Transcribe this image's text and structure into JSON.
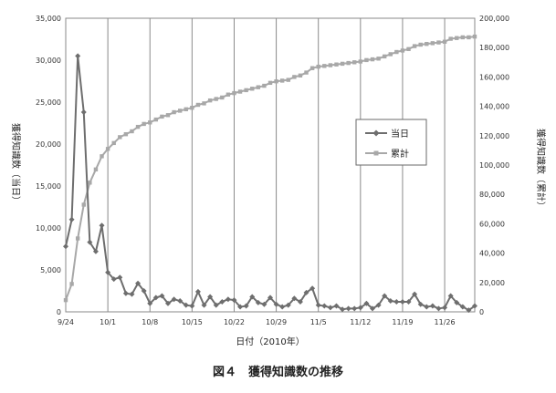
{
  "caption": "図４　獲得知識数の推移",
  "chart_data": {
    "type": "line",
    "xlabel": "日付（2010年）",
    "ylabel_left": "獲得知識数（当日）",
    "ylabel_right": "獲得知識数（累計）",
    "x_tick_labels": [
      "9/24",
      "10/1",
      "10/8",
      "10/15",
      "10/22",
      "10/29",
      "11/5",
      "11/12",
      "11/19",
      "11/26"
    ],
    "x": [
      "9/24",
      "9/25",
      "9/26",
      "9/27",
      "9/28",
      "9/29",
      "9/30",
      "10/1",
      "10/2",
      "10/3",
      "10/4",
      "10/5",
      "10/6",
      "10/7",
      "10/8",
      "10/9",
      "10/10",
      "10/11",
      "10/12",
      "10/13",
      "10/14",
      "10/15",
      "10/16",
      "10/17",
      "10/18",
      "10/19",
      "10/20",
      "10/21",
      "10/22",
      "10/23",
      "10/24",
      "10/25",
      "10/26",
      "10/27",
      "10/28",
      "10/29",
      "10/30",
      "10/31",
      "11/1",
      "11/2",
      "11/3",
      "11/4",
      "11/5",
      "11/6",
      "11/7",
      "11/8",
      "11/9",
      "11/10",
      "11/11",
      "11/12",
      "11/13",
      "11/14",
      "11/15",
      "11/16",
      "11/17",
      "11/18",
      "11/19",
      "11/20",
      "11/21",
      "11/22",
      "11/23",
      "11/24",
      "11/25",
      "11/26",
      "11/27",
      "11/28",
      "11/29",
      "11/30",
      "12/1"
    ],
    "left_axis": {
      "min": 0,
      "max": 35000,
      "step": 5000
    },
    "right_axis": {
      "min": 0,
      "max": 200000,
      "step": 20000
    },
    "grid": "vertical lines at x tick labels",
    "legend": {
      "position": "right-middle",
      "entries": [
        "当日",
        "累計"
      ]
    },
    "series": [
      {
        "name": "当日",
        "axis": "left",
        "color": "#6e6e6e",
        "marker": "diamond",
        "values": [
          7800,
          11000,
          30500,
          23800,
          8300,
          7200,
          10300,
          4700,
          3900,
          4100,
          2200,
          2100,
          3400,
          2500,
          1000,
          1700,
          1900,
          1000,
          1500,
          1300,
          800,
          700,
          2400,
          800,
          1800,
          800,
          1200,
          1500,
          1400,
          600,
          700,
          1800,
          1100,
          900,
          1700,
          900,
          600,
          800,
          1600,
          1200,
          2300,
          2800,
          800,
          700,
          500,
          700,
          300,
          400,
          400,
          500,
          1000,
          400,
          800,
          1900,
          1300,
          1200,
          1200,
          1200,
          2100,
          900,
          600,
          700,
          400,
          500,
          1900,
          1100,
          600,
          200,
          700
        ]
      },
      {
        "name": "累計",
        "axis": "right",
        "color": "#a8a8a8",
        "marker": "square",
        "values": [
          8000,
          19000,
          50000,
          73000,
          88000,
          97000,
          106000,
          111000,
          115000,
          119000,
          121000,
          123000,
          126000,
          128000,
          129000,
          131000,
          133000,
          134000,
          136000,
          137000,
          138000,
          139000,
          141000,
          142000,
          144000,
          145000,
          146000,
          148000,
          149000,
          150000,
          151000,
          152000,
          153000,
          154000,
          156000,
          157000,
          157500,
          158000,
          160000,
          161000,
          163000,
          166000,
          167000,
          167500,
          168000,
          168500,
          169000,
          169500,
          170000,
          170500,
          171500,
          172000,
          172500,
          174000,
          175500,
          177000,
          178000,
          179000,
          181000,
          182000,
          182500,
          183000,
          183500,
          184000,
          186000,
          186500,
          187000,
          187000,
          187500
        ]
      }
    ]
  }
}
